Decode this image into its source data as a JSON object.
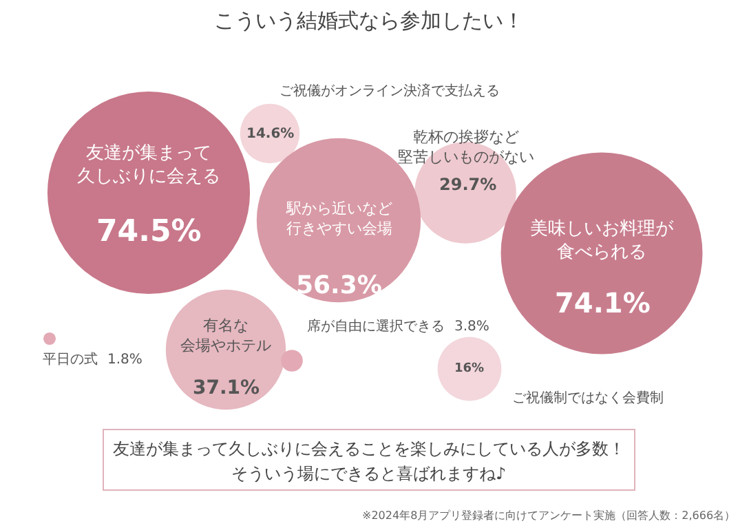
{
  "chart_data": {
    "type": "other",
    "title": "こういう結婚式なら参加したい！",
    "categories": [
      "友達が集まって久しぶりに会える",
      "ご祝儀がオンライン決済で支払える",
      "乾杯の挨拶など堅苦しいものがない",
      "駅から近いなど行きやすい会場",
      "美味しいお料理が食べられる",
      "有名な会場やホテル",
      "平日の式",
      "席が自由に選択できる",
      "ご祝儀制ではなく会費制"
    ],
    "values": [
      74.5,
      14.6,
      29.7,
      56.3,
      74.1,
      37.1,
      1.8,
      3.8,
      16
    ],
    "value_labels": [
      "74.5%",
      "14.6%",
      "29.7%",
      "56.3%",
      "74.1%",
      "37.1%",
      "1.8%",
      "3.8%",
      "16%"
    ],
    "colors": [
      "#c8788a",
      "#f3d5da",
      "#eec9cf",
      "#d89aa6",
      "#c87d8d",
      "#e6b8c0",
      "#e3a9b4",
      "#e3a9b4",
      "#f3d7dc"
    ],
    "annotations": [
      "友達が集まって久しぶりに会えることを楽しみにしている人が多数！",
      "そういう場にできると喜ばれますね♪",
      "※2024年8月アプリ登録者に向けてアンケート実施（回答人数：2,666名）"
    ]
  }
}
